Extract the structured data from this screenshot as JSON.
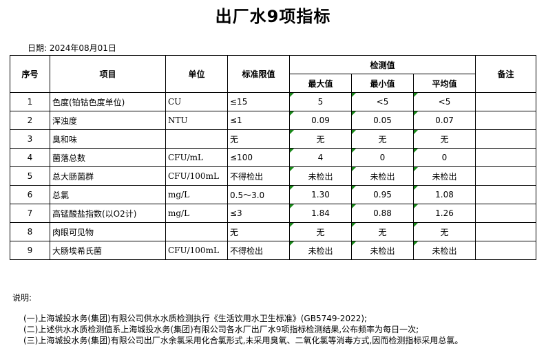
{
  "title": "出厂水9项指标",
  "date": "日期: 2024年08月01日",
  "headers": {
    "no": "序号",
    "item": "项目",
    "unit": "单位",
    "limit": "标准限值",
    "measured": "检测值",
    "max": "最大值",
    "min": "最小值",
    "avg": "平均值",
    "remark": "备注"
  },
  "rows": [
    {
      "no": "1",
      "item": "色度(铂钴色度单位)",
      "unit": "CU",
      "limit": "≤15",
      "max": "5",
      "min": "<5",
      "avg": "<5"
    },
    {
      "no": "2",
      "item": "浑浊度",
      "unit": "NTU",
      "limit": "≤1",
      "max": "0.09",
      "min": "0.05",
      "avg": "0.07"
    },
    {
      "no": "3",
      "item": "臭和味",
      "unit": "",
      "limit": "无",
      "max": "无",
      "min": "无",
      "avg": "无"
    },
    {
      "no": "4",
      "item": "菌落总数",
      "unit": "CFU/mL",
      "limit": "≤100",
      "max": "4",
      "min": "0",
      "avg": "0"
    },
    {
      "no": "5",
      "item": "总大肠菌群",
      "unit": "CFU/100mL",
      "limit": "不得检出",
      "max": "未检出",
      "min": "未检出",
      "avg": "未检出"
    },
    {
      "no": "6",
      "item": "总氯",
      "unit": "mg/L",
      "limit": "0.5～3.0",
      "max": "1.30",
      "min": "0.95",
      "avg": "1.08"
    },
    {
      "no": "7",
      "item": "高锰酸盐指数(以O2计)",
      "unit": "mg/L",
      "limit": "≤3",
      "max": "1.84",
      "min": "0.88",
      "avg": "1.26"
    },
    {
      "no": "8",
      "item": "肉眼可见物",
      "unit": "",
      "limit": "无",
      "max": "无",
      "min": "无",
      "avg": "无"
    },
    {
      "no": "9",
      "item": "大肠埃希氏菌",
      "unit": "CFU/100mL",
      "limit": "不得检出",
      "max": "未检出",
      "min": "未检出",
      "avg": "未检出"
    }
  ],
  "notes_label": "说明:",
  "notes": [
    "(一)上海城投水务(集团)有限公司供水水质检测执行《生活饮用水卫生标准》(GB5749-2022);",
    "(二)上述供水水质检测值系上海城投水务(集团)有限公司各水厂出厂水9项指标检测结果,公布频率为每日一次;",
    "(三)上海城投水务(集团)有限公司出厂水余氯采用化合氯形式,未采用臭氧、二氧化氯等消毒方式,因而检测指标采用总氯。"
  ]
}
